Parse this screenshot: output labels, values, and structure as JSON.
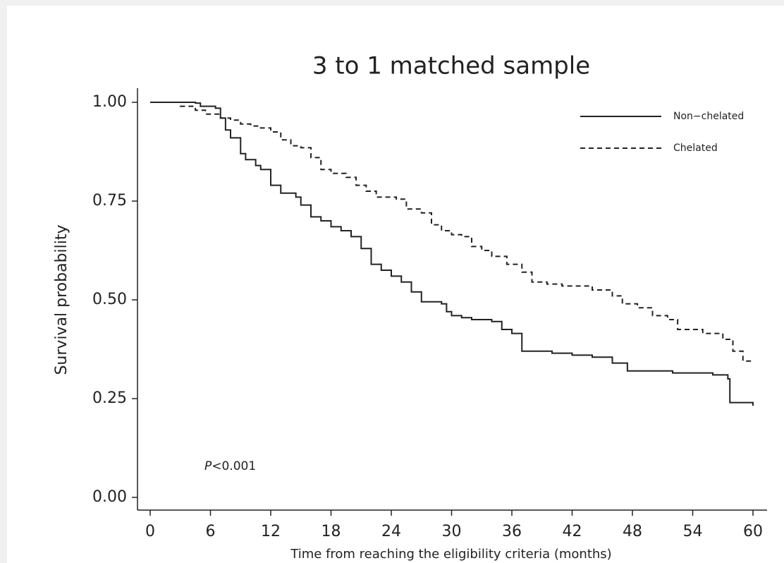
{
  "chart_data": {
    "type": "step",
    "title": "3 to 1 matched sample",
    "xlabel": "Time from reaching the eligibility criteria (months)",
    "ylabel": "Survival probability",
    "annotation": {
      "italic": "P",
      "text": "<0.001"
    },
    "xlim": [
      0,
      60
    ],
    "ylim": [
      0,
      1
    ],
    "xticks": [
      0,
      6,
      12,
      18,
      24,
      30,
      36,
      42,
      48,
      54,
      60
    ],
    "yticks": [
      {
        "value": 0,
        "label": "0.00"
      },
      {
        "value": 0.25,
        "label": "0.25"
      },
      {
        "value": 0.5,
        "label": "0.50"
      },
      {
        "value": 0.75,
        "label": "0.75"
      },
      {
        "value": 1,
        "label": "1.00"
      }
    ],
    "legend": "top-right",
    "series": [
      {
        "name": "Non−chelated",
        "color": "#222222",
        "linestyle": "solid",
        "x": [
          0,
          4.5,
          5,
          6.5,
          7,
          7.5,
          8,
          9,
          9.5,
          10.5,
          11,
          12,
          13,
          14.5,
          15,
          16,
          17,
          18,
          19,
          20,
          21,
          22,
          23,
          24,
          25,
          26,
          27,
          29,
          29.5,
          30,
          31,
          32,
          34,
          35,
          36,
          37,
          40,
          42,
          44,
          46,
          47.5,
          52,
          56,
          57.5,
          57.7,
          60
        ],
        "values": [
          1,
          0.998,
          0.99,
          0.985,
          0.96,
          0.93,
          0.91,
          0.87,
          0.855,
          0.84,
          0.83,
          0.79,
          0.77,
          0.76,
          0.74,
          0.71,
          0.7,
          0.685,
          0.675,
          0.66,
          0.63,
          0.59,
          0.575,
          0.56,
          0.545,
          0.52,
          0.495,
          0.49,
          0.47,
          0.46,
          0.455,
          0.45,
          0.445,
          0.425,
          0.415,
          0.37,
          0.365,
          0.36,
          0.355,
          0.34,
          0.32,
          0.315,
          0.31,
          0.3,
          0.24,
          0.232
        ]
      },
      {
        "name": "Chelated",
        "color": "#222222",
        "linestyle": "dashed",
        "x": [
          0,
          3,
          4.5,
          5.5,
          7,
          8,
          9,
          10,
          11,
          12,
          13,
          14,
          15,
          16,
          17,
          18,
          19.5,
          20.5,
          21.5,
          22.5,
          24.5,
          25.5,
          27,
          28,
          29,
          30,
          31,
          32,
          33,
          34,
          35.5,
          37,
          38,
          39.5,
          41,
          44,
          46,
          47,
          48.5,
          50,
          51.5,
          52.5,
          55,
          57,
          58,
          59,
          60
        ],
        "values": [
          1,
          0.99,
          0.98,
          0.97,
          0.96,
          0.955,
          0.945,
          0.94,
          0.935,
          0.925,
          0.905,
          0.89,
          0.885,
          0.86,
          0.83,
          0.82,
          0.81,
          0.79,
          0.775,
          0.76,
          0.755,
          0.73,
          0.72,
          0.69,
          0.675,
          0.665,
          0.66,
          0.635,
          0.625,
          0.61,
          0.59,
          0.57,
          0.545,
          0.54,
          0.535,
          0.525,
          0.51,
          0.49,
          0.48,
          0.46,
          0.45,
          0.425,
          0.415,
          0.4,
          0.37,
          0.345,
          0.345
        ]
      }
    ]
  }
}
